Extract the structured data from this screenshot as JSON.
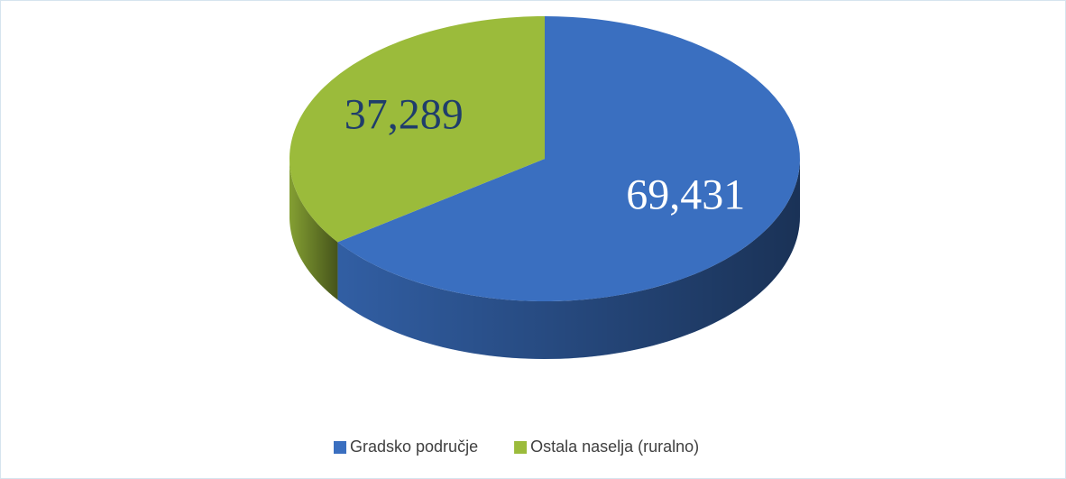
{
  "chart_data": {
    "type": "pie",
    "categories": [
      "Gradsko područje",
      "Ostala naselja (ruralno)"
    ],
    "values": [
      69431,
      37289
    ],
    "value_labels": [
      "69,431",
      "37,289"
    ],
    "colors": [
      "#3a6fc0",
      "#9bbb3b"
    ],
    "legend": "bottom"
  }
}
